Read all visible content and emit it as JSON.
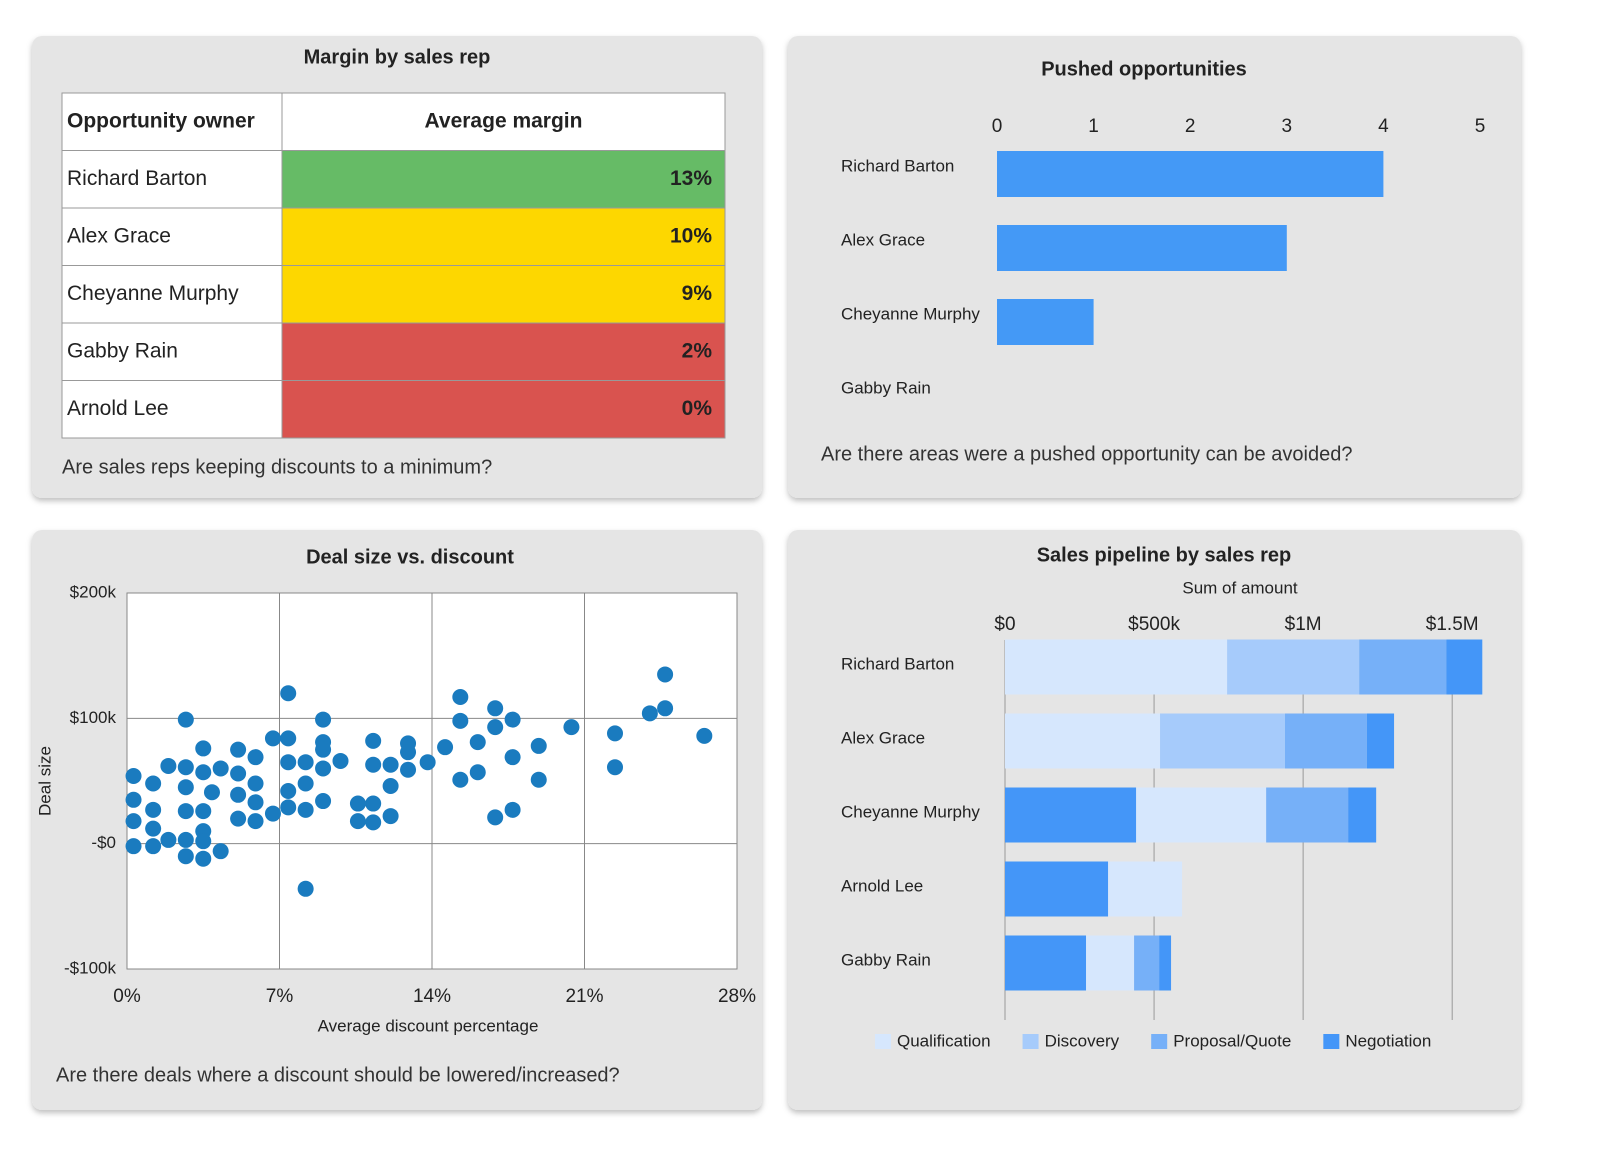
{
  "chart_data": [
    {
      "type": "table",
      "title": "Margin by sales rep",
      "columns": [
        "Opportunity owner",
        "Average margin"
      ],
      "rows": [
        "Richard Barton",
        "Alex Grace",
        "Cheyanne Murphy",
        "Gabby Rain",
        "Arnold Lee"
      ],
      "values": [
        13,
        10,
        9,
        2,
        0
      ],
      "value_labels": [
        "13%",
        "10%",
        "9%",
        "2%",
        "0%"
      ],
      "colors": [
        "#66bb66",
        "#fdd700",
        "#fdd700",
        "#d9534f",
        "#d9534f"
      ],
      "footnote": "Are sales reps keeping discounts to a minimum?"
    },
    {
      "type": "bar",
      "title": "Pushed opportunities",
      "categories": [
        "Richard Barton",
        "Alex Grace",
        "Cheyanne Murphy",
        "Gabby Rain"
      ],
      "values": [
        4,
        3,
        1,
        0
      ],
      "color": "#4499f6",
      "xlim": [
        0,
        5
      ],
      "xticks": [
        0,
        1,
        2,
        3,
        4,
        5
      ],
      "footnote": "Are there areas were a pushed opportunity can be avoided?"
    },
    {
      "type": "scatter",
      "title": "Deal size vs. discount",
      "x_label": "Average discount percentage",
      "y_label": "Deal size",
      "color": "#1a7bbf",
      "grid": true,
      "x": [
        0.3,
        0.3,
        0.3,
        0.3,
        1.2,
        1.2,
        1.2,
        1.2,
        1.9,
        1.9,
        2.7,
        2.7,
        2.7,
        2.7,
        2.7,
        2.7,
        3.5,
        3.5,
        3.5,
        3.5,
        3.5,
        3.5,
        3.9,
        4.3,
        4.3,
        5.1,
        5.1,
        5.1,
        5.1,
        5.9,
        5.9,
        5.9,
        5.9,
        6.7,
        6.7,
        7.4,
        7.4,
        7.4,
        7.4,
        7.4,
        8.2,
        8.2,
        8.2,
        8.2,
        9.0,
        9.0,
        9.0,
        9.0,
        9.0,
        9.8,
        10.6,
        10.6,
        11.3,
        11.3,
        11.3,
        11.3,
        12.1,
        12.1,
        12.1,
        12.9,
        12.9,
        12.9,
        13.8,
        14.6,
        15.3,
        15.3,
        15.3,
        16.1,
        16.1,
        16.9,
        16.9,
        16.9,
        17.7,
        17.7,
        17.7,
        18.9,
        18.9,
        20.4,
        22.4,
        22.4,
        24.0,
        24.7,
        24.7,
        26.5
      ],
      "values": [
        54000,
        35000,
        18000,
        -2000,
        48000,
        27000,
        12000,
        -2000,
        62000,
        3000,
        99000,
        61000,
        45000,
        26000,
        3000,
        -10000,
        76000,
        57000,
        26000,
        10000,
        2000,
        -12000,
        41000,
        60000,
        -6000,
        75000,
        56000,
        39000,
        20000,
        69000,
        48000,
        33000,
        18000,
        84000,
        24000,
        120000,
        84000,
        65000,
        42000,
        29000,
        65000,
        48000,
        27000,
        -36000,
        99000,
        81000,
        75000,
        60000,
        34000,
        66000,
        32000,
        18000,
        82000,
        63000,
        32000,
        17000,
        63000,
        46000,
        22000,
        80000,
        73000,
        59000,
        65000,
        77000,
        117000,
        98000,
        51000,
        81000,
        57000,
        108000,
        93000,
        21000,
        99000,
        69000,
        27000,
        78000,
        51000,
        93000,
        88000,
        61000,
        104000,
        135000,
        108000,
        86000
      ],
      "xlim": [
        0,
        28
      ],
      "xticks": [
        {
          "value": 0,
          "label": "0%"
        },
        {
          "value": 7,
          "label": "7%"
        },
        {
          "value": 14,
          "label": "14%"
        },
        {
          "value": 21,
          "label": "21%"
        },
        {
          "value": 28,
          "label": "28%"
        }
      ],
      "ylim": [
        -100000,
        200000
      ],
      "yticks": [
        {
          "value": -100000,
          "label": "-$100k"
        },
        {
          "value": 0,
          "label": "-$0"
        },
        {
          "value": 100000,
          "label": "$100k"
        },
        {
          "value": 200000,
          "label": "$200k"
        }
      ],
      "footnote": "Are there deals where a discount should be lowered/increased?"
    },
    {
      "type": "stacked_bar",
      "title": "Sales pipeline by sales rep",
      "subtitle": "Sum of amount",
      "categories": [
        "Richard Barton",
        "Alex Grace",
        "Cheyanne Murphy",
        "Arnold Lee",
        "Gabby Rain"
      ],
      "series": [
        {
          "name": null,
          "color": "#4496f8",
          "values": [
            0,
            0,
            440000,
            346000,
            272000
          ]
        },
        {
          "name": "Qualification",
          "color": "#d6e7fd",
          "values": [
            745000,
            520000,
            436000,
            248000,
            161000
          ]
        },
        {
          "name": "Discovery",
          "color": "#a6cbfb",
          "values": [
            443000,
            419000,
            0,
            0,
            0
          ]
        },
        {
          "name": "Proposal/Quote",
          "color": "#76b0f8",
          "values": [
            292000,
            275000,
            275000,
            0,
            84000
          ]
        },
        {
          "name": "Negotiation",
          "color": "#4496f8",
          "values": [
            121000,
            91000,
            94000,
            0,
            40000
          ]
        }
      ],
      "xlim": [
        0,
        1600000
      ],
      "xticks": [
        {
          "value": 0,
          "label": "$0"
        },
        {
          "value": 500000,
          "label": "$500k"
        },
        {
          "value": 1000000,
          "label": "$1M"
        },
        {
          "value": 1500000,
          "label": "$1.5M"
        }
      ],
      "grid": true,
      "legend": "bottom"
    }
  ]
}
